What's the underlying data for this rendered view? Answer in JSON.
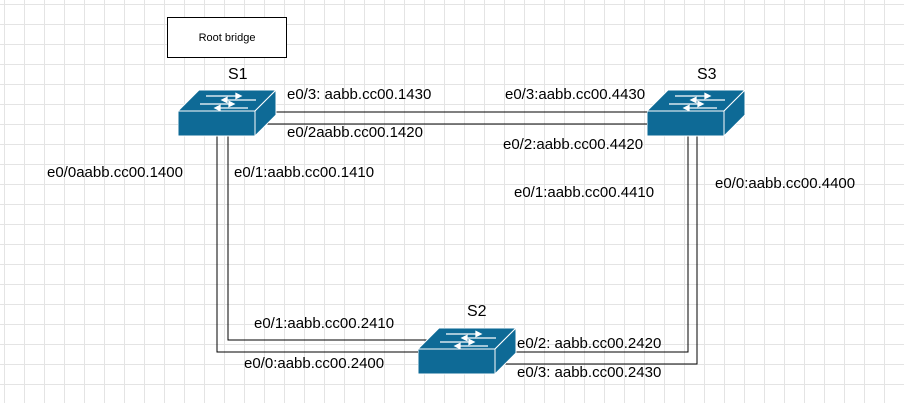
{
  "note": "Root bridge",
  "switches": {
    "s1": {
      "name": "S1"
    },
    "s2": {
      "name": "S2"
    },
    "s3": {
      "name": "S3"
    }
  },
  "ports": {
    "s1_e03": "e0/3: aabb.cc00.1430",
    "s1_e02": "e0/2aabb.cc00.1420",
    "s1_e00": "e0/0aabb.cc00.1400",
    "s1_e01": "e0/1:aabb.cc00.1410",
    "s3_e03": "e0/3:aabb.cc00.4430",
    "s3_e02": "e0/2:aabb.cc00.4420",
    "s3_e01": "e0/1:aabb.cc00.4410",
    "s3_e00": "e0/0:aabb.cc00.4400",
    "s2_e01": "e0/1:aabb.cc00.2410",
    "s2_e00": "e0/0:aabb.cc00.2400",
    "s2_e02": "e0/2: aabb.cc00.2420",
    "s2_e03": "e0/3: aabb.cc00.2430"
  },
  "colors": {
    "switch": "#0e6a96",
    "link": "#000000"
  }
}
